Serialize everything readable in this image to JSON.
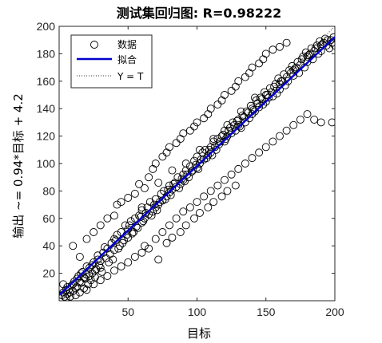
{
  "chart_data": {
    "type": "scatter",
    "title": "测试集回归图: R=0.98222",
    "xlabel": "目标",
    "ylabel": "输出 ~= 0.94*目标 + 4.2",
    "xlim": [
      0,
      200
    ],
    "ylim": [
      0,
      200
    ],
    "x_ticks": [
      "50",
      "100",
      "150",
      "200"
    ],
    "y_ticks": [
      "20",
      "40",
      "60",
      "80",
      "100",
      "120",
      "140",
      "160",
      "180",
      "200"
    ],
    "legend": {
      "placement": "top-left",
      "entries": [
        "数据",
        "拟合",
        "Y = T"
      ]
    },
    "colors": {
      "data_marker": "#000000",
      "fit_line": "#0000cc",
      "identity_line": "#333333"
    },
    "fit": {
      "slope": 0.94,
      "intercept": 4.2
    },
    "series": [
      {
        "name": "数据",
        "points": [
          [
            2,
            4
          ],
          [
            3,
            6
          ],
          [
            4,
            3
          ],
          [
            5,
            8
          ],
          [
            6,
            10
          ],
          [
            3,
            12
          ],
          [
            8,
            6
          ],
          [
            10,
            12
          ],
          [
            12,
            9
          ],
          [
            13,
            16
          ],
          [
            15,
            14
          ],
          [
            16,
            20
          ],
          [
            18,
            17
          ],
          [
            20,
            25
          ],
          [
            20,
            19
          ],
          [
            22,
            18
          ],
          [
            24,
            26
          ],
          [
            26,
            22
          ],
          [
            28,
            30
          ],
          [
            30,
            29
          ],
          [
            30,
            24
          ],
          [
            32,
            35
          ],
          [
            34,
            31
          ],
          [
            35,
            38
          ],
          [
            36,
            28
          ],
          [
            38,
            42
          ],
          [
            40,
            37
          ],
          [
            40,
            45
          ],
          [
            42,
            48
          ],
          [
            44,
            40
          ],
          [
            45,
            50
          ],
          [
            46,
            42
          ],
          [
            48,
            55
          ],
          [
            50,
            46
          ],
          [
            50,
            52
          ],
          [
            52,
            58
          ],
          [
            54,
            50
          ],
          [
            55,
            60
          ],
          [
            56,
            54
          ],
          [
            58,
            62
          ],
          [
            60,
            57
          ],
          [
            60,
            66
          ],
          [
            62,
            60
          ],
          [
            64,
            68
          ],
          [
            65,
            63
          ],
          [
            66,
            72
          ],
          [
            68,
            65
          ],
          [
            70,
            74
          ],
          [
            70,
            68
          ],
          [
            72,
            70
          ],
          [
            74,
            78
          ],
          [
            75,
            73
          ],
          [
            76,
            80
          ],
          [
            78,
            76
          ],
          [
            80,
            84
          ],
          [
            80,
            79
          ],
          [
            82,
            81
          ],
          [
            84,
            86
          ],
          [
            85,
            83
          ],
          [
            86,
            90
          ],
          [
            88,
            85
          ],
          [
            90,
            92
          ],
          [
            90,
            88
          ],
          [
            92,
            95
          ],
          [
            94,
            90
          ],
          [
            95,
            98
          ],
          [
            96,
            94
          ],
          [
            98,
            102
          ],
          [
            100,
            97
          ],
          [
            100,
            105
          ],
          [
            102,
            100
          ],
          [
            104,
            108
          ],
          [
            105,
            103
          ],
          [
            106,
            110
          ],
          [
            108,
            106
          ],
          [
            110,
            112
          ],
          [
            110,
            108
          ],
          [
            112,
            116
          ],
          [
            114,
            110
          ],
          [
            115,
            118
          ],
          [
            116,
            114
          ],
          [
            118,
            120
          ],
          [
            120,
            116
          ],
          [
            120,
            124
          ],
          [
            122,
            120
          ],
          [
            124,
            126
          ],
          [
            125,
            122
          ],
          [
            126,
            130
          ],
          [
            128,
            124
          ],
          [
            130,
            132
          ],
          [
            130,
            128
          ],
          [
            132,
            126
          ],
          [
            134,
            134
          ],
          [
            135,
            130
          ],
          [
            136,
            138
          ],
          [
            138,
            133
          ],
          [
            140,
            140
          ],
          [
            140,
            136
          ],
          [
            142,
            138
          ],
          [
            144,
            144
          ],
          [
            145,
            141
          ],
          [
            146,
            148
          ],
          [
            148,
            143
          ],
          [
            150,
            150
          ],
          [
            150,
            145
          ],
          [
            152,
            148
          ],
          [
            154,
            152
          ],
          [
            155,
            149
          ],
          [
            156,
            156
          ],
          [
            158,
            151
          ],
          [
            160,
            158
          ],
          [
            160,
            154
          ],
          [
            162,
            160
          ],
          [
            164,
            157
          ],
          [
            165,
            163
          ],
          [
            166,
            160
          ],
          [
            168,
            166
          ],
          [
            170,
            164
          ],
          [
            170,
            168
          ],
          [
            172,
            170
          ],
          [
            174,
            166
          ],
          [
            175,
            172
          ],
          [
            176,
            176
          ],
          [
            178,
            170
          ],
          [
            180,
            178
          ],
          [
            180,
            174
          ],
          [
            182,
            180
          ],
          [
            184,
            176
          ],
          [
            185,
            182
          ],
          [
            186,
            184
          ],
          [
            188,
            180
          ],
          [
            190,
            186
          ],
          [
            190,
            182
          ],
          [
            192,
            188
          ],
          [
            194,
            186
          ],
          [
            195,
            190
          ],
          [
            196,
            184
          ],
          [
            198,
            188
          ],
          [
            200,
            186
          ],
          [
            10,
            40
          ],
          [
            15,
            32
          ],
          [
            20,
            45
          ],
          [
            25,
            50
          ],
          [
            30,
            55
          ],
          [
            35,
            60
          ],
          [
            40,
            62
          ],
          [
            42,
            70
          ],
          [
            45,
            72
          ],
          [
            50,
            75
          ],
          [
            55,
            78
          ],
          [
            58,
            85
          ],
          [
            60,
            68
          ],
          [
            62,
            82
          ],
          [
            65,
            90
          ],
          [
            68,
            96
          ],
          [
            70,
            100
          ],
          [
            72,
            86
          ],
          [
            75,
            105
          ],
          [
            78,
            108
          ],
          [
            80,
            112
          ],
          [
            82,
            95
          ],
          [
            85,
            115
          ],
          [
            88,
            118
          ],
          [
            90,
            122
          ],
          [
            92,
            100
          ],
          [
            95,
            124
          ],
          [
            98,
            127
          ],
          [
            100,
            130
          ],
          [
            102,
            110
          ],
          [
            105,
            133
          ],
          [
            108,
            136
          ],
          [
            110,
            140
          ],
          [
            112,
            118
          ],
          [
            115,
            143
          ],
          [
            118,
            146
          ],
          [
            120,
            150
          ],
          [
            122,
            128
          ],
          [
            125,
            153
          ],
          [
            128,
            156
          ],
          [
            130,
            160
          ],
          [
            132,
            138
          ],
          [
            135,
            163
          ],
          [
            138,
            166
          ],
          [
            140,
            170
          ],
          [
            142,
            148
          ],
          [
            145,
            173
          ],
          [
            148,
            176
          ],
          [
            150,
            180
          ],
          [
            155,
            183
          ],
          [
            160,
            185
          ],
          [
            165,
            188
          ],
          [
            20,
            8
          ],
          [
            25,
            12
          ],
          [
            30,
            15
          ],
          [
            35,
            18
          ],
          [
            40,
            22
          ],
          [
            45,
            25
          ],
          [
            50,
            28
          ],
          [
            55,
            32
          ],
          [
            60,
            35
          ],
          [
            62,
            40
          ],
          [
            65,
            38
          ],
          [
            70,
            45
          ],
          [
            72,
            30
          ],
          [
            75,
            50
          ],
          [
            78,
            42
          ],
          [
            80,
            55
          ],
          [
            82,
            46
          ],
          [
            85,
            60
          ],
          [
            88,
            50
          ],
          [
            90,
            65
          ],
          [
            92,
            55
          ],
          [
            95,
            68
          ],
          [
            98,
            60
          ],
          [
            100,
            72
          ],
          [
            102,
            64
          ],
          [
            105,
            76
          ],
          [
            108,
            68
          ],
          [
            110,
            80
          ],
          [
            112,
            72
          ],
          [
            115,
            84
          ],
          [
            118,
            76
          ],
          [
            120,
            88
          ],
          [
            122,
            80
          ],
          [
            125,
            92
          ],
          [
            128,
            84
          ],
          [
            130,
            96
          ],
          [
            135,
            100
          ],
          [
            140,
            104
          ],
          [
            145,
            108
          ],
          [
            150,
            112
          ],
          [
            155,
            116
          ],
          [
            160,
            120
          ],
          [
            165,
            124
          ],
          [
            170,
            128
          ],
          [
            175,
            132
          ],
          [
            180,
            136
          ],
          [
            185,
            132
          ],
          [
            190,
            130
          ],
          [
            198,
            130
          ],
          [
            5,
            2
          ],
          [
            6,
            5
          ],
          [
            7,
            8
          ],
          [
            8,
            3
          ],
          [
            9,
            11
          ],
          [
            10,
            7
          ],
          [
            11,
            14
          ],
          [
            12,
            4
          ],
          [
            13,
            10
          ],
          [
            14,
            18
          ],
          [
            15,
            6
          ],
          [
            16,
            13
          ],
          [
            17,
            21
          ],
          [
            18,
            9
          ],
          [
            19,
            16
          ],
          [
            21,
            12
          ],
          [
            22,
            24
          ],
          [
            23,
            15
          ],
          [
            24,
            20
          ],
          [
            25,
            28
          ],
          [
            26,
            17
          ],
          [
            27,
            23
          ],
          [
            28,
            33
          ],
          [
            29,
            26
          ],
          [
            31,
            21
          ],
          [
            33,
            39
          ],
          [
            37,
            34
          ],
          [
            39,
            30
          ],
          [
            41,
            44
          ],
          [
            43,
            38
          ],
          [
            47,
            44
          ],
          [
            49,
            48
          ],
          [
            51,
            55
          ],
          [
            53,
            49
          ],
          [
            57,
            53
          ],
          [
            59,
            61
          ],
          [
            61,
            58
          ],
          [
            63,
            64
          ],
          [
            67,
            62
          ],
          [
            69,
            70
          ],
          [
            71,
            66
          ],
          [
            73,
            72
          ],
          [
            77,
            74
          ],
          [
            79,
            81
          ],
          [
            81,
            77
          ],
          [
            83,
            85
          ],
          [
            87,
            82
          ],
          [
            89,
            89
          ],
          [
            91,
            87
          ],
          [
            93,
            92
          ],
          [
            97,
            95
          ],
          [
            99,
            99
          ],
          [
            101,
            96
          ],
          [
            103,
            103
          ],
          [
            107,
            104
          ],
          [
            109,
            110
          ],
          [
            111,
            106
          ],
          [
            113,
            112
          ],
          [
            117,
            116
          ],
          [
            119,
            121
          ],
          [
            121,
            118
          ],
          [
            123,
            124
          ],
          [
            127,
            128
          ],
          [
            129,
            131
          ],
          [
            131,
            127
          ],
          [
            133,
            135
          ],
          [
            137,
            137
          ],
          [
            139,
            142
          ],
          [
            141,
            139
          ],
          [
            143,
            146
          ],
          [
            147,
            147
          ],
          [
            149,
            152
          ],
          [
            151,
            150
          ],
          [
            153,
            155
          ],
          [
            157,
            158
          ],
          [
            159,
            162
          ],
          [
            161,
            160
          ],
          [
            163,
            165
          ],
          [
            167,
            168
          ],
          [
            169,
            171
          ],
          [
            171,
            169
          ],
          [
            173,
            174
          ],
          [
            177,
            178
          ],
          [
            179,
            181
          ],
          [
            181,
            179
          ],
          [
            183,
            184
          ],
          [
            187,
            186
          ],
          [
            189,
            189
          ],
          [
            191,
            187
          ],
          [
            193,
            191
          ],
          [
            197,
            190
          ],
          [
            199,
            192
          ]
        ]
      }
    ]
  }
}
